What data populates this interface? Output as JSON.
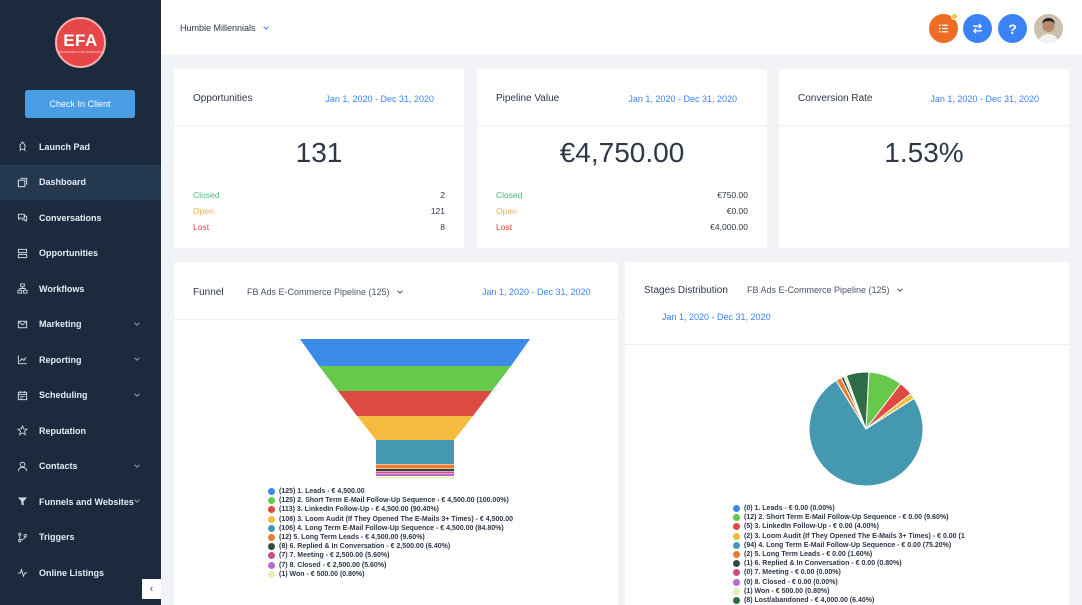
{
  "sidebar": {
    "logo_text": "EFA",
    "logo_sub": "EMPOWER FOR AGENCIES",
    "checkin_label": "Check In Client",
    "items": [
      {
        "label": "Launch Pad",
        "icon": "rocket-icon",
        "chevron": false
      },
      {
        "label": "Dashboard",
        "icon": "dashboard-icon",
        "chevron": false,
        "active": true
      },
      {
        "label": "Conversations",
        "icon": "chat-icon",
        "chevron": false
      },
      {
        "label": "Opportunities",
        "icon": "opportunities-icon",
        "chevron": false
      },
      {
        "label": "Workflows",
        "icon": "workflow-icon",
        "chevron": false
      },
      {
        "label": "Marketing",
        "icon": "mail-icon",
        "chevron": true
      },
      {
        "label": "Reporting",
        "icon": "chart-icon",
        "chevron": true
      },
      {
        "label": "Scheduling",
        "icon": "calendar-icon",
        "chevron": true
      },
      {
        "label": "Reputation",
        "icon": "star-icon",
        "chevron": false
      },
      {
        "label": "Contacts",
        "icon": "user-icon",
        "chevron": true
      },
      {
        "label": "Funnels and Websites",
        "icon": "filter-icon",
        "chevron": true
      },
      {
        "label": "Triggers",
        "icon": "trigger-icon",
        "chevron": false
      },
      {
        "label": "Online Listings",
        "icon": "pulse-icon",
        "chevron": false
      }
    ],
    "collapse_icon": "chevron-left-icon"
  },
  "topbar": {
    "client_name": "Humble Millennials",
    "help_label": "?"
  },
  "cards": {
    "opportunities": {
      "title": "Opportunities",
      "date": "Jan 1, 2020 - Dec 31, 2020",
      "value": "131",
      "rows": [
        {
          "label": "Closed",
          "value": "2"
        },
        {
          "label": "Open",
          "value": "121"
        },
        {
          "label": "Lost",
          "value": "8"
        }
      ]
    },
    "pipeline": {
      "title": "Pipeline Value",
      "date": "Jan 1, 2020 - Dec 31, 2020",
      "value": "€4,750.00",
      "rows": [
        {
          "label": "Closed",
          "value": "€750.00"
        },
        {
          "label": "Open",
          "value": "€0.00"
        },
        {
          "label": "Lost",
          "value": "€4,000.00"
        }
      ]
    },
    "conversion": {
      "title": "Conversion Rate",
      "date": "Jan 1, 2020 - Dec 31, 2020",
      "value": "1.53%"
    }
  },
  "funnel": {
    "title": "Funnel",
    "pipeline": "FB Ads E-Commerce Pipeline (125)",
    "date": "Jan 1, 2020 - Dec 31, 2020",
    "colors": [
      "#3b8bea",
      "#66c94b",
      "#dc4a41",
      "#f4bb3f",
      "#4499b0",
      "#eb7c30",
      "#2f4a3c",
      "#cf4b8b",
      "#b968cf",
      "#e4f0b2"
    ],
    "legend": [
      "(125) 1. Leads - € 4,500.00",
      "(125) 2. Short Term E-Mail Follow-Up Sequence - € 4,500.00 (100.00%)",
      "(113) 3. LinkedIn Follow-Up - € 4,500.00 (90.40%)",
      "(108) 3. Loom Audit (If They Opened The E-Mails 3+ Times) - € 4,500.00",
      "(106) 4. Long Term E-Mail Follow-Up Sequence - € 4,500.00 (84.80%)",
      "(12) 5. Long Term Leads - € 4,500.00 (9.60%)",
      "(8) 6. Replied & In Conversation - € 2,500.00 (6.40%)",
      "(7) 7. Meeting - € 2,500.00 (5.60%)",
      "(7) 8. Closed - € 2,500.00 (5.60%)",
      "(1) Won - € 500.00 (0.80%)"
    ]
  },
  "stages": {
    "title": "Stages Distribution",
    "pipeline": "FB Ads E-Commerce Pipeline (125)",
    "date": "Jan 1, 2020 - Dec 31, 2020",
    "colors": [
      "#3b8bea",
      "#66c94b",
      "#dc4a41",
      "#f4bb3f",
      "#4499b0",
      "#eb7c30",
      "#2f4a3c",
      "#cf4b8b",
      "#b968cf",
      "#e4f0b2",
      "#2e6b46"
    ],
    "legend": [
      "(0) 1. Leads - € 0.00 (0.00%)",
      "(12) 2. Short Term E-Mail Follow-Up Sequence - € 0.00 (9.60%)",
      "(5) 3. LinkedIn Follow-Up - € 0.00 (4.00%)",
      "(2) 3. Loom Audit (If They Opened The E-Mails 3+ Times) - € 0.00 (1",
      "(94) 4. Long Term E-Mail Follow-Up Sequence - € 0.00 (75.20%)",
      "(2) 5. Long Term Leads - € 0.00 (1.60%)",
      "(1) 6. Replied & In Conversation - € 0.00 (0.80%)",
      "(0) 7. Meeting - € 0.00 (0.00%)",
      "(0) 8. Closed - € 0.00 (0.00%)",
      "(1) Won - € 500.00 (0.80%)",
      "(8) Lost/abandoned - € 4,000.00 (6.40%)"
    ]
  },
  "chart_data": [
    {
      "type": "funnel",
      "categories": [
        "1. Leads",
        "2. Short Term E-Mail Follow-Up Sequence",
        "3. LinkedIn Follow-Up",
        "3. Loom Audit (If They Opened The E-Mails 3+ Times)",
        "4. Long Term E-Mail Follow-Up Sequence",
        "5. Long Term Leads",
        "6. Replied & In Conversation",
        "7. Meeting",
        "8. Closed",
        "Won"
      ],
      "values": [
        125,
        125,
        113,
        108,
        106,
        12,
        8,
        7,
        7,
        1
      ]
    },
    {
      "type": "pie",
      "categories": [
        "1. Leads",
        "2. Short Term E-Mail Follow-Up Sequence",
        "3. LinkedIn Follow-Up",
        "3. Loom Audit (If They Opened The E-Mails 3+ Times)",
        "4. Long Term E-Mail Follow-Up Sequence",
        "5. Long Term Leads",
        "6. Replied & In Conversation",
        "7. Meeting",
        "8. Closed",
        "Won",
        "Lost/abandoned"
      ],
      "values": [
        0,
        12,
        5,
        2,
        94,
        2,
        1,
        0,
        0,
        1,
        8
      ]
    }
  ]
}
